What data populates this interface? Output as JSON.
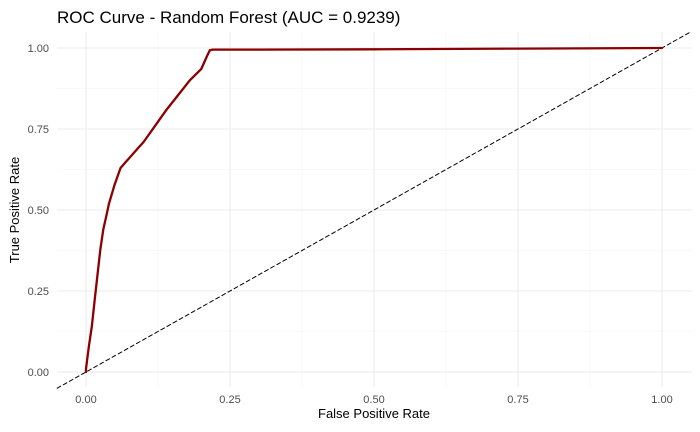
{
  "chart_data": {
    "type": "line",
    "title": "ROC Curve - Random Forest (AUC = 0.9239)",
    "xlabel": "False Positive Rate",
    "ylabel": "True Positive Rate",
    "xlim": [
      0,
      1
    ],
    "ylim": [
      0,
      1
    ],
    "x_ticks": [
      "0.00",
      "0.25",
      "0.50",
      "0.75",
      "1.00"
    ],
    "y_ticks": [
      "0.00",
      "0.25",
      "0.50",
      "0.75",
      "1.00"
    ],
    "grid": true,
    "series": [
      {
        "color": "#8b0000",
        "style": "solid",
        "x": [
          0.0,
          0.0,
          0.005,
          0.01,
          0.015,
          0.02,
          0.025,
          0.03,
          0.035,
          0.04,
          0.05,
          0.06,
          0.07,
          0.08,
          0.09,
          0.1,
          0.12,
          0.14,
          0.16,
          0.18,
          0.2,
          0.205,
          0.21,
          0.215,
          0.22,
          0.3,
          0.5,
          0.75,
          1.0
        ],
        "y": [
          0.0,
          0.01,
          0.08,
          0.14,
          0.22,
          0.3,
          0.38,
          0.44,
          0.48,
          0.52,
          0.58,
          0.63,
          0.65,
          0.67,
          0.69,
          0.71,
          0.76,
          0.81,
          0.855,
          0.9,
          0.935,
          0.955,
          0.975,
          0.993,
          0.995,
          0.995,
          0.996,
          0.998,
          1.0
        ]
      },
      {
        "color": "#000000",
        "style": "dashed",
        "x": [
          -0.05,
          1.05
        ],
        "y": [
          -0.05,
          1.05
        ]
      }
    ]
  }
}
